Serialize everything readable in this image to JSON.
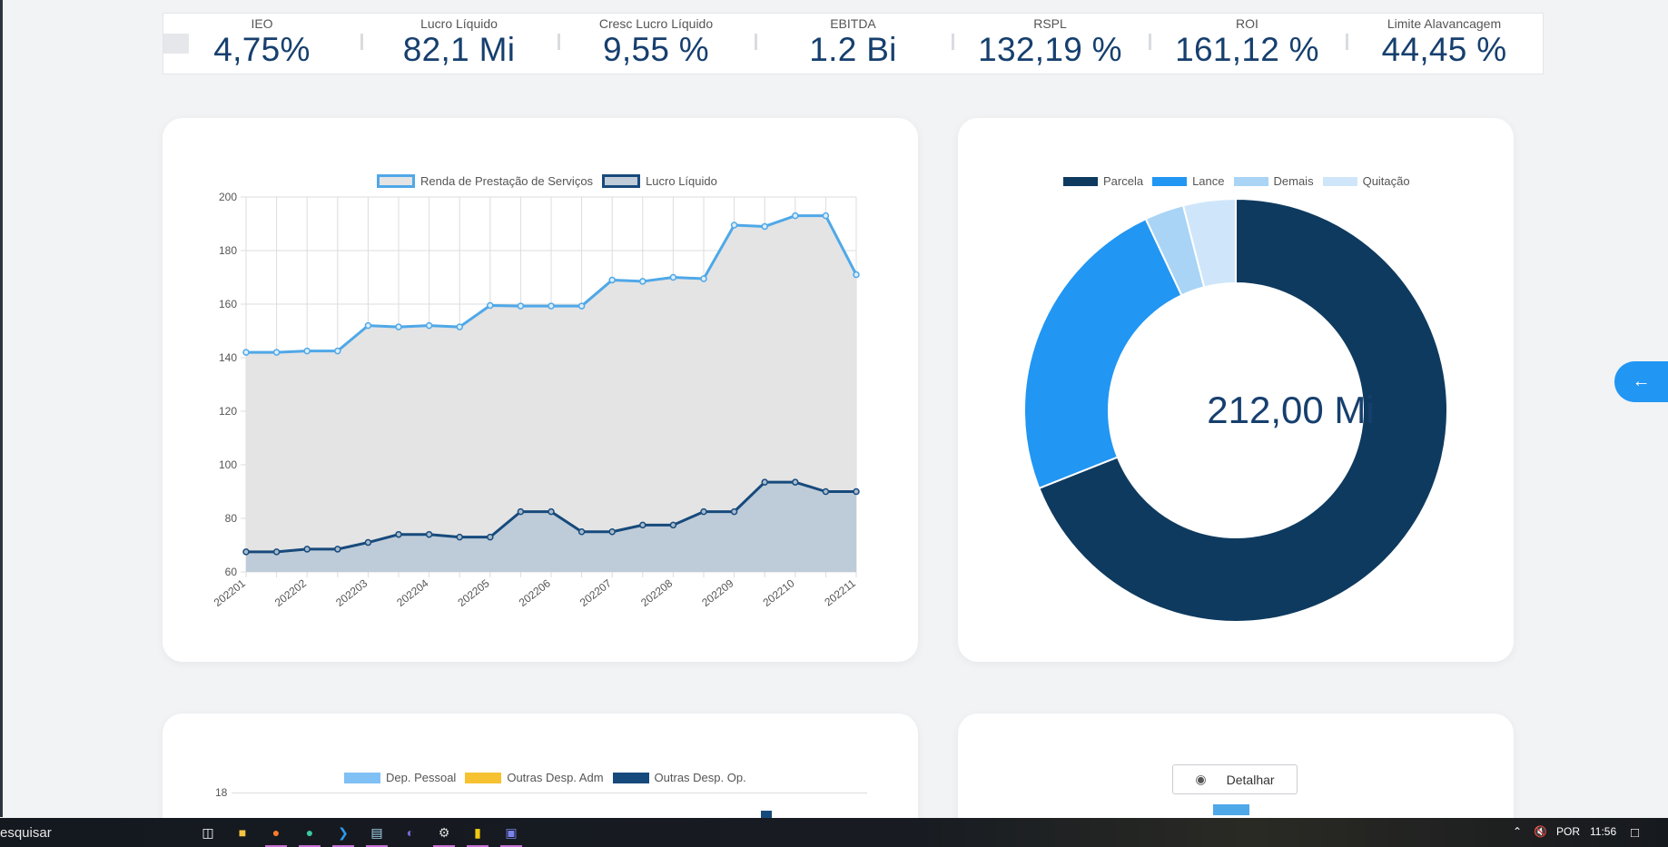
{
  "kpis": [
    {
      "label": "IEO",
      "value": "4,75%"
    },
    {
      "label": "Lucro Líquido",
      "value": "82,1 Mi"
    },
    {
      "label": "Cresc Lucro Líquido",
      "value": "9,55 %"
    },
    {
      "label": "EBITDA",
      "value": "1.2 Bi"
    },
    {
      "label": "RSPL",
      "value": "132,19 %"
    },
    {
      "label": "ROI",
      "value": "161,12 %"
    },
    {
      "label": "Limite Alavancagem",
      "value": "44,45 %"
    }
  ],
  "chart_data": [
    {
      "type": "area",
      "x": [
        "202201",
        "202201",
        "202202",
        "202202",
        "202203",
        "202203",
        "202204",
        "202204",
        "202205",
        "202205",
        "202206",
        "202206",
        "202207",
        "202207",
        "202208",
        "202208",
        "202209",
        "202209",
        "202210",
        "202210",
        "202211"
      ],
      "x_tick_labels": [
        "202201",
        "202202",
        "202203",
        "202204",
        "202205",
        "202206",
        "202207",
        "202208",
        "202209",
        "202210",
        "202211"
      ],
      "series": [
        {
          "name": "Renda de Prestação de Serviços",
          "values": [
            142,
            142,
            142.5,
            142.5,
            152,
            151.5,
            152,
            151.5,
            159.5,
            159.3,
            159.3,
            159.3,
            169,
            168.5,
            170,
            169.5,
            189.5,
            189,
            193,
            193,
            171
          ],
          "color": "#4fa8e8"
        },
        {
          "name": "Lucro Líquido",
          "values": [
            67.5,
            67.5,
            68.5,
            68.5,
            71,
            74,
            74,
            73,
            73,
            82.5,
            82.5,
            75,
            75,
            77.5,
            77.5,
            82.5,
            82.5,
            93.5,
            93.5,
            90,
            90
          ],
          "color": "#174a7c"
        }
      ],
      "ylim": [
        60,
        200
      ],
      "y_ticks": [
        60,
        80,
        100,
        120,
        140,
        160,
        180,
        200
      ],
      "grid": true,
      "legend": "top"
    },
    {
      "type": "pie",
      "donut": true,
      "center_label": "212,00 Mi",
      "labels": [
        "Parcela",
        "Lance",
        "Demais",
        "Quitação"
      ],
      "values": [
        69,
        24,
        3,
        4
      ],
      "colors": [
        "#0e3a5f",
        "#2196f3",
        "#a9d4f5",
        "#cfe6fa"
      ],
      "legend": "top"
    },
    {
      "type": "bar",
      "series": [
        {
          "name": "Dep. Pessoal",
          "color": "#7fc0f5"
        },
        {
          "name": "Outras Desp. Adm",
          "color": "#f6c231"
        },
        {
          "name": "Outras Desp. Op.",
          "color": "#174a7c"
        }
      ],
      "y_ticks_visible": [
        18
      ],
      "legend": "top"
    }
  ],
  "detalhar_button": {
    "label": "Detalhar",
    "icon": "eye-icon"
  },
  "side_button": {
    "icon": "arrow-left-icon"
  },
  "taskbar": {
    "search_text": "esquisar",
    "language": "POR",
    "time": "11:56",
    "apps": [
      "task-view-icon",
      "file-explorer-icon",
      "firefox-icon",
      "edge-icon",
      "vscode-icon",
      "notepad-icon",
      "eclipse-icon",
      "settings-icon",
      "powerbi-icon",
      "teams-icon"
    ]
  }
}
